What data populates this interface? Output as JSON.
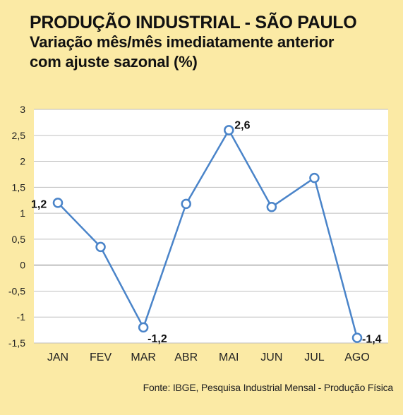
{
  "header": {
    "title": "PRODUÇÃO INDUSTRIAL - SÃO PAULO",
    "subtitle_line1": "Variação mês/mês imediatamente anterior",
    "subtitle_line2": "com ajuste sazonal (%)"
  },
  "source": "Fonte: IBGE, Pesquisa Industrial Mensal - Produção Física",
  "colors": {
    "background": "#fbeaa5",
    "plot_background": "#ffffff",
    "line": "#4a84c9",
    "marker_fill": "#ffffff",
    "grid": "#bfbfbf",
    "zero_line": "#777777"
  },
  "chart_data": {
    "type": "line",
    "categories": [
      "JAN",
      "FEV",
      "MAR",
      "ABR",
      "MAI",
      "JUN",
      "JUL",
      "AGO"
    ],
    "values": [
      1.2,
      0.35,
      -1.2,
      1.18,
      2.6,
      1.12,
      1.68,
      -1.4
    ],
    "data_labels": [
      {
        "index": 0,
        "text": "1,2"
      },
      {
        "index": 2,
        "text": "-1,2"
      },
      {
        "index": 4,
        "text": "2,6"
      },
      {
        "index": 7,
        "text": "-1,4"
      }
    ],
    "yticks": [
      3,
      2.5,
      2,
      1.5,
      1,
      0.5,
      0,
      -0.5,
      -1,
      -1.5
    ],
    "ytick_labels": [
      "3",
      "2,5",
      "2",
      "1,5",
      "1",
      "0,5",
      "0",
      "-0,5",
      "-1",
      "-1,5"
    ],
    "ylim": [
      -1.5,
      3
    ],
    "grid": true,
    "legend": "none"
  }
}
